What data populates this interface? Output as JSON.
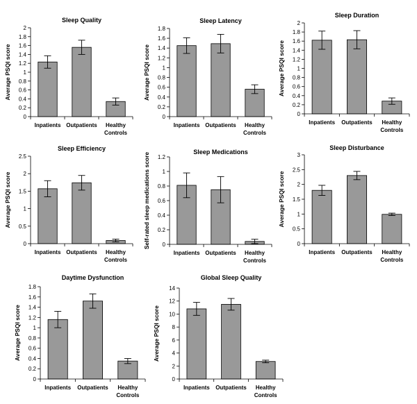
{
  "chart_data": [
    {
      "type": "bar",
      "title": "Sleep Quality",
      "ylabel": "Average PSQI score",
      "categories": [
        "Inpatients",
        "Outpatients",
        "Healthy Controls"
      ],
      "category_lines": [
        [
          "Inpatients"
        ],
        [
          "Outpatients"
        ],
        [
          "Healthy",
          "Controls"
        ]
      ],
      "values": [
        1.23,
        1.56,
        0.34
      ],
      "errors": [
        0.14,
        0.16,
        0.08
      ],
      "ylim": [
        0,
        2
      ],
      "yticks": [
        0,
        0.2,
        0.4,
        0.6,
        0.8,
        1,
        1.2,
        1.4,
        1.6,
        1.8,
        2
      ],
      "ytick_labels": [
        "0",
        "0.2",
        "0.4",
        "0.6",
        "0.8",
        "1",
        "1.2",
        "1.4",
        "1.6",
        "1.8",
        "2"
      ]
    },
    {
      "type": "bar",
      "title": "Sleep Latency",
      "ylabel": "Average PSQI score",
      "categories": [
        "Inpatients",
        "Outpatients",
        "Healthy Controls"
      ],
      "category_lines": [
        [
          "Inpatients"
        ],
        [
          "Outpatients"
        ],
        [
          "Healthy",
          "Controls"
        ]
      ],
      "values": [
        1.45,
        1.49,
        0.56
      ],
      "errors": [
        0.16,
        0.19,
        0.09
      ],
      "ylim": [
        0,
        1.8
      ],
      "yticks": [
        0,
        0.2,
        0.4,
        0.6,
        0.8,
        1,
        1.2,
        1.4,
        1.6,
        1.8
      ],
      "ytick_labels": [
        "0",
        "0.2",
        "0.4",
        "0.6",
        "0.8",
        "1",
        "1.2",
        "1.4",
        "1.6",
        "1.8"
      ]
    },
    {
      "type": "bar",
      "title": "Sleep Duration",
      "ylabel": "Average PSQI score",
      "categories": [
        "Inpatients",
        "Outpatients",
        "Healthy Controls"
      ],
      "category_lines": [
        [
          "Inpatients"
        ],
        [
          "Outpatients"
        ],
        [
          "Healthy",
          "Controls"
        ]
      ],
      "values": [
        1.62,
        1.63,
        0.28
      ],
      "errors": [
        0.2,
        0.2,
        0.07
      ],
      "ylim": [
        0,
        2
      ],
      "yticks": [
        0,
        0.2,
        0.4,
        0.6,
        0.8,
        1,
        1.2,
        1.4,
        1.6,
        1.8,
        2
      ],
      "ytick_labels": [
        "0",
        "0.2",
        "0.4",
        "0.6",
        "0.8",
        "1",
        "1.2",
        "1.4",
        "1.6",
        "1.8",
        "2"
      ]
    },
    {
      "type": "bar",
      "title": "Sleep Efficiency",
      "ylabel": "Average PSQI score",
      "categories": [
        "Inpatients",
        "Outpatients",
        "Healthy Controls"
      ],
      "category_lines": [
        [
          "Inpatients"
        ],
        [
          "Outpatients"
        ],
        [
          "Healthy",
          "Controls"
        ]
      ],
      "values": [
        1.57,
        1.74,
        0.09
      ],
      "errors": [
        0.23,
        0.21,
        0.04
      ],
      "ylim": [
        0,
        2.5
      ],
      "yticks": [
        0,
        0.5,
        1,
        1.5,
        2,
        2.5
      ],
      "ytick_labels": [
        "0",
        "0.5",
        "1",
        "1.5",
        "2",
        "2.5"
      ]
    },
    {
      "type": "bar",
      "title": "Sleep Medications",
      "ylabel": "Self-rated sleep medications score",
      "categories": [
        "Inpatients",
        "Outpatients",
        "Healthy Controls"
      ],
      "category_lines": [
        [
          "Inpatients"
        ],
        [
          "Outpatients"
        ],
        [
          "Healthy",
          "Controls"
        ]
      ],
      "values": [
        0.81,
        0.75,
        0.04
      ],
      "errors": [
        0.17,
        0.18,
        0.03
      ],
      "ylim": [
        0,
        1.2
      ],
      "yticks": [
        0,
        0.2,
        0.4,
        0.6,
        0.8,
        1,
        1.2
      ],
      "ytick_labels": [
        "0",
        "0.2",
        "0.4",
        "0.6",
        "0.8",
        "1",
        "1.2"
      ]
    },
    {
      "type": "bar",
      "title": "Sleep Disturbance",
      "ylabel": "Average PSQI score",
      "categories": [
        "Inpatients",
        "Outpatients",
        "Healthy Controls"
      ],
      "category_lines": [
        [
          "Inpatients"
        ],
        [
          "Outpatients"
        ],
        [
          "Healthy",
          "Controls"
        ]
      ],
      "values": [
        1.8,
        2.3,
        0.99
      ],
      "errors": [
        0.17,
        0.14,
        0.04
      ],
      "ylim": [
        0,
        3
      ],
      "yticks": [
        0,
        0.5,
        1,
        1.5,
        2,
        2.5,
        3
      ],
      "ytick_labels": [
        "0",
        "0.5",
        "1",
        "1.5",
        "2",
        "2.5",
        "3"
      ]
    },
    {
      "type": "bar",
      "title": "Daytime Dysfunction",
      "ylabel": "Average PSQI score",
      "categories": [
        "Inpatients",
        "Outpatients",
        "Healthy Controls"
      ],
      "category_lines": [
        [
          "Inpatients"
        ],
        [
          "Outpatients"
        ],
        [
          "Healthy",
          "Controls"
        ]
      ],
      "values": [
        1.16,
        1.52,
        0.35
      ],
      "errors": [
        0.16,
        0.14,
        0.05
      ],
      "ylim": [
        0,
        1.8
      ],
      "yticks": [
        0,
        0.2,
        0.4,
        0.6,
        0.8,
        1,
        1.2,
        1.4,
        1.6,
        1.8
      ],
      "ytick_labels": [
        "0",
        "0.2",
        "0.4",
        "0.6",
        "0.8",
        "1",
        "1.2",
        "1.4",
        "1.6",
        "1.8"
      ]
    },
    {
      "type": "bar",
      "title": "Global Sleep Quality",
      "ylabel": "Average PSQI score",
      "categories": [
        "Inpatients",
        "Outpatients",
        "Healthy Controls"
      ],
      "category_lines": [
        [
          "Inpatients"
        ],
        [
          "Outpatients"
        ],
        [
          "Healthy",
          "Controls"
        ]
      ],
      "values": [
        10.8,
        11.5,
        2.7
      ],
      "errors": [
        1.0,
        0.9,
        0.2
      ],
      "ylim": [
        0,
        14
      ],
      "yticks": [
        0,
        2,
        4,
        6,
        8,
        10,
        12,
        14
      ],
      "ytick_labels": [
        "0",
        "2",
        "4",
        "6",
        "8",
        "10",
        "12",
        "14"
      ]
    }
  ]
}
